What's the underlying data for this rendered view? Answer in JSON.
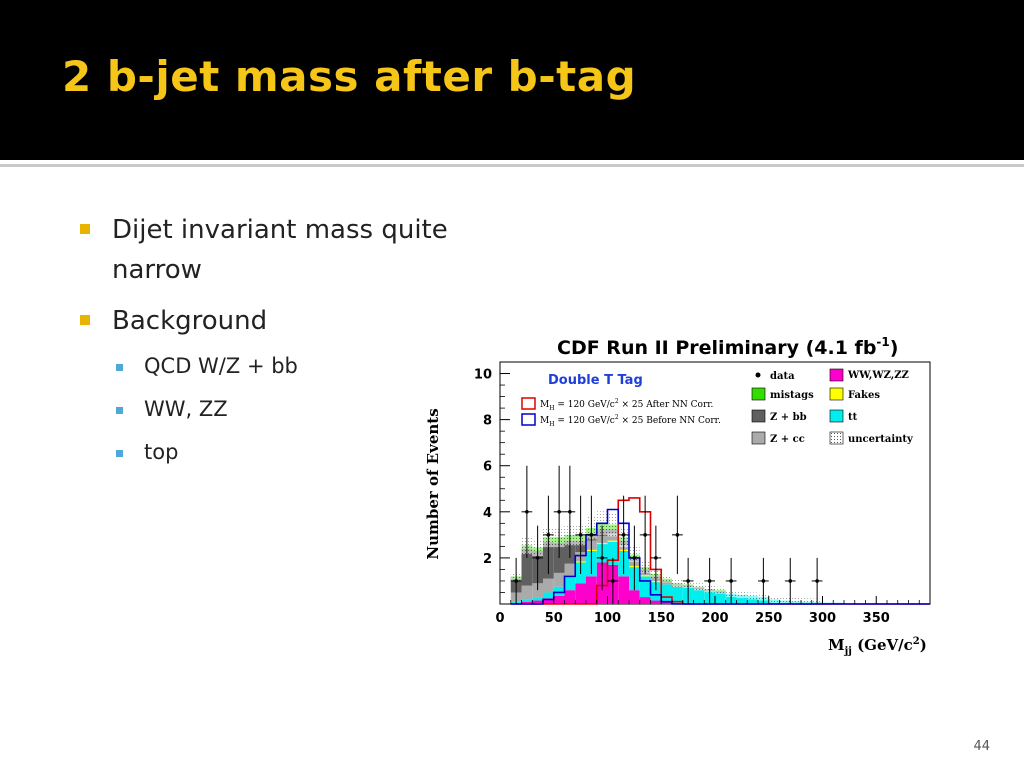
{
  "header": {
    "title": "2 b-jet mass after b-tag"
  },
  "bullets": [
    {
      "text_lines": [
        "Dijet invariant mass quite",
        "narrow"
      ]
    },
    {
      "text": "Background"
    }
  ],
  "subbullets": [
    "QCD W/Z + bb",
    "WW, ZZ",
    "top"
  ],
  "page_number": "44",
  "chart_data": {
    "type": "histogram",
    "title": "CDF Run II Preliminary (4.1 fb",
    "title_sup": "-1",
    "title_end": ")",
    "tag_label": "Double T Tag",
    "ylabel": "Number of Events",
    "xlabel": "M",
    "xlabel_sub": "jj",
    "xlabel_unit": " (GeV/c",
    "xlabel_sup": "2",
    "xlabel_end": ")",
    "xlim": [
      0,
      400
    ],
    "ylim": [
      0,
      10.5
    ],
    "xticks": [
      "0",
      "50",
      "100",
      "150",
      "200",
      "250",
      "300",
      "350"
    ],
    "xtick_values": [
      0,
      50,
      100,
      150,
      200,
      250,
      300,
      350
    ],
    "yticks": [
      "2",
      "4",
      "6",
      "8",
      "10"
    ],
    "ytick_values": [
      2,
      4,
      6,
      8,
      10
    ],
    "bin_edges": [
      10,
      20,
      30,
      40,
      50,
      60,
      70,
      80,
      90,
      100,
      110,
      120,
      130,
      140,
      150,
      160,
      170,
      180,
      190,
      200,
      210,
      220,
      230,
      240,
      250,
      260,
      270,
      280,
      290,
      300,
      310,
      320,
      330,
      340,
      350,
      360,
      370,
      380,
      390,
      400
    ],
    "stack": [
      {
        "name": "WW,WZ,ZZ",
        "color": "#ff00cc",
        "values": [
          0.05,
          0.1,
          0.15,
          0.25,
          0.35,
          0.6,
          0.9,
          1.2,
          1.8,
          1.7,
          1.2,
          0.6,
          0.3,
          0.15,
          0.1,
          0.05,
          0.05,
          0,
          0,
          0,
          0,
          0,
          0,
          0,
          0,
          0,
          0,
          0,
          0,
          0,
          0,
          0,
          0,
          0,
          0,
          0,
          0,
          0,
          0
        ]
      },
      {
        "name": "tt",
        "color": "#00eeee",
        "values": [
          0.05,
          0.1,
          0.15,
          0.25,
          0.4,
          0.6,
          0.9,
          1.1,
          0.8,
          1.0,
          1.1,
          1.0,
          0.9,
          0.8,
          0.75,
          0.7,
          0.65,
          0.6,
          0.55,
          0.5,
          0.45,
          0.4,
          0.35,
          0.3,
          0.2,
          0.15,
          0.12,
          0.1,
          0.08,
          0.05,
          0.05,
          0,
          0,
          0,
          0,
          0,
          0,
          0,
          0
        ]
      },
      {
        "name": "Fakes",
        "color": "#ffff00",
        "values": [
          0,
          0,
          0,
          0,
          0,
          0.05,
          0.05,
          0.05,
          0.05,
          0.05,
          0.05,
          0.05,
          0.05,
          0.05,
          0,
          0,
          0,
          0,
          0,
          0,
          0,
          0,
          0,
          0,
          0,
          0,
          0,
          0,
          0,
          0,
          0,
          0,
          0,
          0,
          0,
          0,
          0,
          0,
          0
        ]
      },
      {
        "name": "Z + cc",
        "color": "#aaaaaa",
        "values": [
          0.4,
          0.6,
          0.6,
          0.6,
          0.6,
          0.5,
          0.4,
          0.4,
          0.3,
          0.3,
          0.2,
          0.2,
          0.15,
          0.1,
          0.1,
          0.05,
          0.05,
          0.05,
          0,
          0,
          0,
          0,
          0,
          0,
          0,
          0,
          0,
          0,
          0,
          0,
          0,
          0,
          0,
          0,
          0,
          0,
          0,
          0,
          0
        ]
      },
      {
        "name": "Z + bb",
        "color": "#606060",
        "values": [
          0.6,
          1.6,
          1.4,
          1.6,
          1.3,
          1.0,
          0.5,
          0.3,
          0.3,
          0.2,
          0.2,
          0.15,
          0.1,
          0.1,
          0.05,
          0.05,
          0.05,
          0.05,
          0.05,
          0.05,
          0,
          0,
          0,
          0,
          0,
          0,
          0,
          0,
          0,
          0,
          0,
          0,
          0,
          0,
          0,
          0,
          0,
          0,
          0
        ]
      },
      {
        "name": "mistags",
        "color": "#33dd00",
        "values": [
          0.1,
          0.15,
          0.15,
          0.2,
          0.25,
          0.25,
          0.25,
          0.25,
          0.25,
          0.2,
          0.15,
          0.15,
          0.1,
          0.1,
          0.1,
          0.05,
          0.05,
          0.05,
          0.05,
          0.05,
          0,
          0,
          0,
          0,
          0,
          0,
          0,
          0,
          0,
          0,
          0,
          0,
          0,
          0,
          0,
          0,
          0,
          0,
          0
        ]
      }
    ],
    "uncertainty_label": "uncertainty",
    "data_label": "data",
    "data_points": [
      {
        "x": 15,
        "y": 1.0,
        "err": 1.0
      },
      {
        "x": 25,
        "y": 4.0,
        "err": 2.0
      },
      {
        "x": 35,
        "y": 2.0,
        "err": 1.4
      },
      {
        "x": 45,
        "y": 3.0,
        "err": 1.7
      },
      {
        "x": 55,
        "y": 4.0,
        "err": 2.0
      },
      {
        "x": 65,
        "y": 4.0,
        "err": 2.0
      },
      {
        "x": 75,
        "y": 3.0,
        "err": 1.7
      },
      {
        "x": 85,
        "y": 3.0,
        "err": 1.7
      },
      {
        "x": 95,
        "y": 2.0,
        "err": 1.4
      },
      {
        "x": 105,
        "y": 1.0,
        "err": 1.0
      },
      {
        "x": 115,
        "y": 3.0,
        "err": 1.7
      },
      {
        "x": 125,
        "y": 2.0,
        "err": 1.4
      },
      {
        "x": 135,
        "y": 3.0,
        "err": 1.7
      },
      {
        "x": 145,
        "y": 2.0,
        "err": 1.4
      },
      {
        "x": 165,
        "y": 3.0,
        "err": 1.7
      },
      {
        "x": 175,
        "y": 1.0,
        "err": 1.0
      },
      {
        "x": 195,
        "y": 1.0,
        "err": 1.0
      },
      {
        "x": 215,
        "y": 1.0,
        "err": 1.0
      },
      {
        "x": 245,
        "y": 1.0,
        "err": 1.0
      },
      {
        "x": 270,
        "y": 1.0,
        "err": 1.0
      },
      {
        "x": 295,
        "y": 1.0,
        "err": 1.0
      }
    ],
    "signal_curves": [
      {
        "name": "M_H = 120 GeV/c² × 25 After NN Corr.",
        "color": "#dd0000",
        "label_a": "M",
        "label_sub": "H",
        "label_b": " = 120 GeV/c",
        "label_sup": "2",
        "label_c": " × 25 After NN Corr.",
        "values": [
          0,
          0,
          0,
          0,
          0,
          0,
          0,
          0,
          0.8,
          1.9,
          4.5,
          4.6,
          4.0,
          1.5,
          0.3,
          0.1,
          0,
          0,
          0,
          0,
          0,
          0,
          0,
          0,
          0,
          0,
          0,
          0,
          0,
          0,
          0,
          0,
          0,
          0,
          0,
          0,
          0,
          0,
          0
        ]
      },
      {
        "name": "M_H = 120 GeV/c² × 25 Before NN Corr.",
        "color": "#0000cc",
        "label_a": "M",
        "label_sub": "H",
        "label_b": " = 120 GeV/c",
        "label_sup": "2",
        "label_c": " × 25 Before NN Corr.",
        "values": [
          0,
          0,
          0,
          0.2,
          0.5,
          1.2,
          2.1,
          3.0,
          3.5,
          4.1,
          3.5,
          2.0,
          1.0,
          0.4,
          0.1,
          0,
          0,
          0,
          0,
          0,
          0,
          0,
          0,
          0,
          0,
          0,
          0,
          0,
          0,
          0,
          0,
          0,
          0,
          0,
          0,
          0,
          0,
          0,
          0
        ]
      }
    ]
  }
}
